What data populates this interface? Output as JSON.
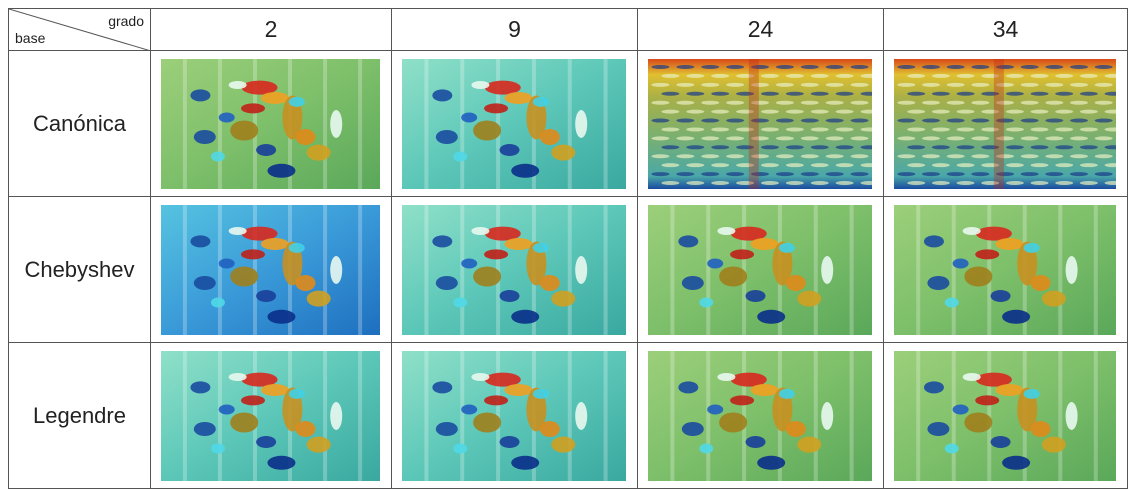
{
  "table": {
    "corner": {
      "column_header": "grado",
      "row_header": "base"
    },
    "columns": [
      "2",
      "9",
      "24",
      "34"
    ],
    "rows": [
      {
        "label": "Canónica"
      },
      {
        "label": "Chebyshev"
      },
      {
        "label": "Legendre"
      }
    ]
  }
}
